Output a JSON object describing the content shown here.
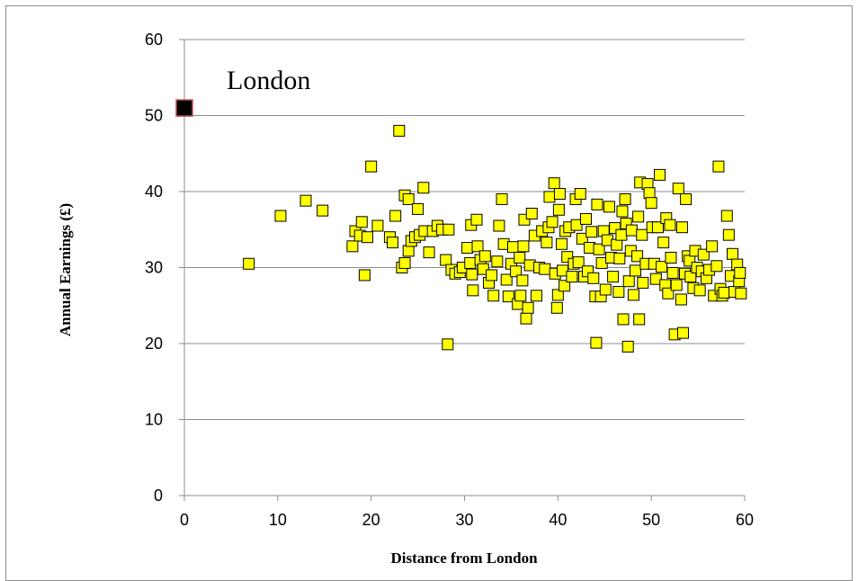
{
  "chart_data": {
    "type": "scatter",
    "title": "",
    "xlabel": "Distance from London",
    "ylabel": "Annual Earnings (£)",
    "xlim": [
      0,
      60
    ],
    "ylim": [
      0,
      60
    ],
    "xticks": [
      "0",
      "10",
      "20",
      "30",
      "40",
      "50",
      "60"
    ],
    "yticks": [
      "0",
      "10",
      "20",
      "30",
      "40",
      "50",
      "60"
    ],
    "grid": "horizontal",
    "legend": "none",
    "annotation": "London",
    "highlight_point": {
      "x": 0,
      "y": 51,
      "color": "#000000",
      "edge": "#c0504d"
    },
    "marker_color": "#ffff00",
    "marker_edge": "#000000",
    "points": [
      [
        6.9,
        30.5
      ],
      [
        10.3,
        36.8
      ],
      [
        13,
        38.8
      ],
      [
        14.8,
        37.5
      ],
      [
        18,
        32.8
      ],
      [
        18.3,
        34.8
      ],
      [
        18.8,
        34.2
      ],
      [
        19,
        36
      ],
      [
        19.3,
        29
      ],
      [
        19.6,
        34
      ],
      [
        20,
        43.3
      ],
      [
        20.7,
        35.5
      ],
      [
        22,
        34
      ],
      [
        22.3,
        33.3
      ],
      [
        22.6,
        36.8
      ],
      [
        23,
        48
      ],
      [
        23.3,
        30
      ],
      [
        23.6,
        30.6
      ],
      [
        23.6,
        39.5
      ],
      [
        24,
        32.2
      ],
      [
        24,
        39
      ],
      [
        24.3,
        33.5
      ],
      [
        24.7,
        34
      ],
      [
        25,
        37.7
      ],
      [
        25.2,
        34.3
      ],
      [
        25.6,
        40.5
      ],
      [
        25.7,
        34.8
      ],
      [
        26.2,
        32
      ],
      [
        26.6,
        34.8
      ],
      [
        27.1,
        35.5
      ],
      [
        27.6,
        35
      ],
      [
        28,
        31
      ],
      [
        28.3,
        35
      ],
      [
        28.2,
        19.9
      ],
      [
        28.6,
        29.7
      ],
      [
        29,
        29.2
      ],
      [
        29.5,
        29.4
      ],
      [
        29.8,
        30
      ],
      [
        30.3,
        32.6
      ],
      [
        30.6,
        30.6
      ],
      [
        30.7,
        35.6
      ],
      [
        30.8,
        29.1
      ],
      [
        30.9,
        27
      ],
      [
        31.3,
        36.3
      ],
      [
        31.4,
        32.8
      ],
      [
        31.7,
        31
      ],
      [
        32,
        29.8
      ],
      [
        32.2,
        31.5
      ],
      [
        32.6,
        28
      ],
      [
        32.9,
        29
      ],
      [
        33.1,
        26.3
      ],
      [
        33.5,
        30.8
      ],
      [
        33.7,
        35.5
      ],
      [
        34,
        39
      ],
      [
        34.2,
        33.1
      ],
      [
        34.5,
        28.4
      ],
      [
        34.7,
        26.2
      ],
      [
        35,
        30.5
      ],
      [
        35.2,
        32.7
      ],
      [
        35.5,
        29.5
      ],
      [
        35.7,
        25.2
      ],
      [
        35.9,
        31.3
      ],
      [
        36,
        26.3
      ],
      [
        36.2,
        28.3
      ],
      [
        36.3,
        32.8
      ],
      [
        36.4,
        36.3
      ],
      [
        36.6,
        23.3
      ],
      [
        36.8,
        24.7
      ],
      [
        37,
        30.3
      ],
      [
        37.2,
        37.1
      ],
      [
        37.5,
        34.2
      ],
      [
        37.7,
        26.3
      ],
      [
        38,
        30
      ],
      [
        38.3,
        34.8
      ],
      [
        38.6,
        29.8
      ],
      [
        38.8,
        33.3
      ],
      [
        39,
        35.3
      ],
      [
        39.1,
        39.3
      ],
      [
        39.4,
        36
      ],
      [
        39.6,
        41.1
      ],
      [
        39.7,
        29.2
      ],
      [
        39.9,
        24.7
      ],
      [
        40,
        26.4
      ],
      [
        40.1,
        37.6
      ],
      [
        40.2,
        39.7
      ],
      [
        40.4,
        33.1
      ],
      [
        40.5,
        29.6
      ],
      [
        40.7,
        27.6
      ],
      [
        40.8,
        34.8
      ],
      [
        41,
        31.4
      ],
      [
        41.2,
        35.3
      ],
      [
        41.5,
        28.8
      ],
      [
        41.7,
        30.5
      ],
      [
        41.9,
        39
      ],
      [
        42,
        35.6
      ],
      [
        42.2,
        30.7
      ],
      [
        42.4,
        39.7
      ],
      [
        42.6,
        33.8
      ],
      [
        42.8,
        28.8
      ],
      [
        43,
        36.4
      ],
      [
        43.2,
        29.5
      ],
      [
        43.4,
        32.6
      ],
      [
        43.6,
        34.7
      ],
      [
        43.8,
        28.6
      ],
      [
        44,
        26.2
      ],
      [
        44.1,
        20.1
      ],
      [
        44.2,
        38.3
      ],
      [
        44.4,
        32.4
      ],
      [
        44.6,
        26.2
      ],
      [
        44.7,
        30.6
      ],
      [
        44.9,
        34.8
      ],
      [
        45.1,
        27.1
      ],
      [
        45.3,
        33.6
      ],
      [
        45.5,
        38
      ],
      [
        45.7,
        31.3
      ],
      [
        45.9,
        28.8
      ],
      [
        46.1,
        35.2
      ],
      [
        46.3,
        33
      ],
      [
        46.5,
        26.8
      ],
      [
        46.6,
        31.2
      ],
      [
        46.8,
        34.3
      ],
      [
        46.9,
        37.4
      ],
      [
        47,
        23.2
      ],
      [
        47.2,
        39
      ],
      [
        47.3,
        35.8
      ],
      [
        47.5,
        19.6
      ],
      [
        47.6,
        28.2
      ],
      [
        47.8,
        32.2
      ],
      [
        47.9,
        34.9
      ],
      [
        48.1,
        26.4
      ],
      [
        48.3,
        29.6
      ],
      [
        48.5,
        31.5
      ],
      [
        48.6,
        36.7
      ],
      [
        48.7,
        23.2
      ],
      [
        48.8,
        41.2
      ],
      [
        49,
        34.3
      ],
      [
        49.1,
        28
      ],
      [
        49.4,
        30.5
      ],
      [
        49.6,
        41
      ],
      [
        49.8,
        39.8
      ],
      [
        50,
        38.5
      ],
      [
        50.1,
        35.3
      ],
      [
        50.3,
        30.5
      ],
      [
        50.5,
        28.5
      ],
      [
        50.7,
        35.3
      ],
      [
        50.9,
        42.2
      ],
      [
        51.1,
        30.1
      ],
      [
        51.3,
        33.3
      ],
      [
        51.5,
        27.7
      ],
      [
        51.6,
        36.5
      ],
      [
        51.8,
        26.6
      ],
      [
        52,
        35.6
      ],
      [
        52.1,
        31.3
      ],
      [
        52.3,
        29.3
      ],
      [
        52.5,
        21.2
      ],
      [
        52.7,
        27.7
      ],
      [
        52.9,
        40.4
      ],
      [
        53.2,
        25.8
      ],
      [
        53.3,
        35.3
      ],
      [
        53.4,
        21.4
      ],
      [
        53.6,
        29.2
      ],
      [
        53.7,
        39
      ],
      [
        53.9,
        31.5
      ],
      [
        54.1,
        30.9
      ],
      [
        54.2,
        28.8
      ],
      [
        54.5,
        27.3
      ],
      [
        54.7,
        32.2
      ],
      [
        54.9,
        30
      ],
      [
        55.2,
        27
      ],
      [
        55.4,
        29.5
      ],
      [
        55.6,
        31.7
      ],
      [
        55.9,
        28.6
      ],
      [
        56.2,
        29.7
      ],
      [
        56.5,
        32.8
      ],
      [
        56.7,
        26.3
      ],
      [
        57,
        30.2
      ],
      [
        57.2,
        43.3
      ],
      [
        57.4,
        27.2
      ],
      [
        57.6,
        26.3
      ],
      [
        57.8,
        26.7
      ],
      [
        58.1,
        36.8
      ],
      [
        58.3,
        34.3
      ],
      [
        58.5,
        28.9
      ],
      [
        58.7,
        31.8
      ],
      [
        58.9,
        26.8
      ],
      [
        59.2,
        30.4
      ],
      [
        59.4,
        28.2
      ],
      [
        59.5,
        29.3
      ],
      [
        59.6,
        26.6
      ]
    ]
  }
}
